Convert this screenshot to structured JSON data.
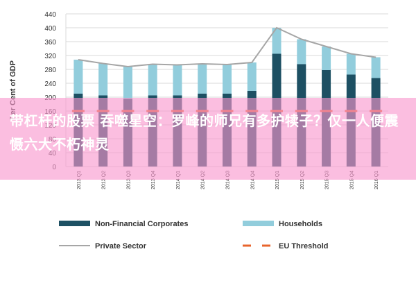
{
  "overlay": {
    "text": "带杠杆的股票 吞噬星空：罗峰的师兄有多护犊子？仅一人便震慑六大不朽神灵"
  },
  "colors": {
    "non_financial": "#1d5063",
    "households": "#92cddc",
    "private_sector": "#a6a6a6",
    "eu_threshold": "#e8642c",
    "grid": "#d9d9d9",
    "overlay": "#f896cd"
  },
  "chart_data": {
    "type": "bar",
    "stacked": true,
    "title": "",
    "xlabel": "",
    "ylabel": "Per Cent of GDP",
    "ylim": [
      0,
      440
    ],
    "yticks": [
      0,
      40,
      80,
      120,
      160,
      200,
      240,
      280,
      320,
      360,
      400,
      440
    ],
    "grid": true,
    "legend_position": "bottom",
    "categories": [
      "2013 Q1",
      "2013 Q2",
      "2013 Q3",
      "2013 Q4",
      "2014 Q1",
      "2014 Q2",
      "2014 Q3",
      "2014 Q4",
      "2015 Q1",
      "2015 Q2",
      "2015 Q3",
      "2015 Q4",
      "2016 Q1"
    ],
    "series": [
      {
        "name": "Non-Financial Corporates",
        "kind": "bar",
        "values": [
          210,
          205,
          195,
          205,
          205,
          210,
          210,
          218,
          325,
          295,
          278,
          265,
          255
        ]
      },
      {
        "name": "Households",
        "kind": "bar",
        "values": [
          98,
          92,
          93,
          90,
          88,
          86,
          84,
          82,
          75,
          72,
          68,
          60,
          60
        ]
      },
      {
        "name": "Private Sector",
        "kind": "line",
        "values": [
          308,
          297,
          288,
          295,
          293,
          296,
          294,
          300,
          400,
          367,
          346,
          325,
          315
        ]
      },
      {
        "name": "EU Threshold",
        "kind": "line",
        "style": "dashed",
        "values": [
          160,
          160,
          160,
          160,
          160,
          160,
          160,
          160,
          160,
          160,
          160,
          160,
          160
        ]
      }
    ]
  }
}
